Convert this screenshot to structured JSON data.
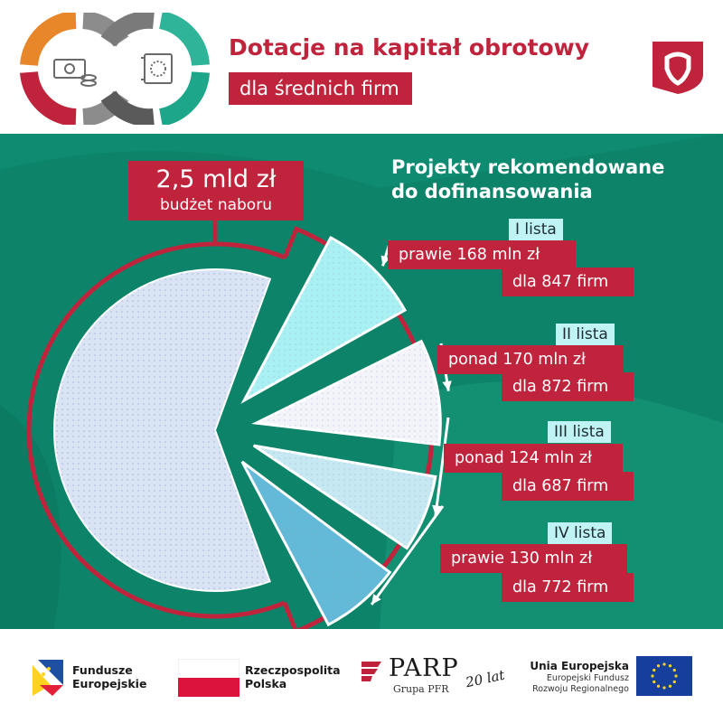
{
  "header": {
    "title_line1": "Dotacje na kapitał obrotowy",
    "title_line2": "dla średnich firm"
  },
  "budget": {
    "amount": "2,5 mld zł",
    "caption": "budżet naboru"
  },
  "projects_heading": {
    "line1": "Projekty rekomendowane",
    "line2": "do dofinansowania"
  },
  "lists": [
    {
      "tag": "I lista",
      "amount": "prawie 168 mln zł",
      "firms": "dla 847 firm"
    },
    {
      "tag": "II lista",
      "amount": "ponad 170 mln zł",
      "firms": "dla 872 firm"
    },
    {
      "tag": "III lista",
      "amount": "ponad 124 mln zł",
      "firms": "dla 687 firm"
    },
    {
      "tag": "IV lista",
      "amount": "prawie 130 mln zł",
      "firms": "dla 772 firm"
    }
  ],
  "chart_data": {
    "type": "pie",
    "total": 2500,
    "unit": "mln zł",
    "series": [
      {
        "name": "I lista",
        "value": 168,
        "firms": 847
      },
      {
        "name": "II lista",
        "value": 170,
        "firms": 872
      },
      {
        "name": "III lista",
        "value": 124,
        "firms": 687
      },
      {
        "name": "IV lista",
        "value": 130,
        "firms": 772
      }
    ],
    "remaining_budget": 1908
  },
  "footer": {
    "fe_line1": "Fundusze",
    "fe_line2": "Europejskie",
    "rp_line1": "Rzeczpospolita",
    "rp_line2": "Polska",
    "parp_name": "PARP",
    "parp_group": "Grupa PFR",
    "parp_years": "20 lat",
    "eu_title": "Unia Europejska",
    "eu_line1": "Europejski Fundusz",
    "eu_line2": "Rozwoju Regionalnego"
  },
  "colors": {
    "brand_red": "#c0243c",
    "band_green": "#0e8b70",
    "slice_base": "#d9e3f3",
    "slice_1": "#a9f0f2",
    "slice_2": "#f3f3fa",
    "slice_3": "#c6e8f2",
    "slice_4": "#62b9d8",
    "tag_bg": "#bff3f4"
  }
}
